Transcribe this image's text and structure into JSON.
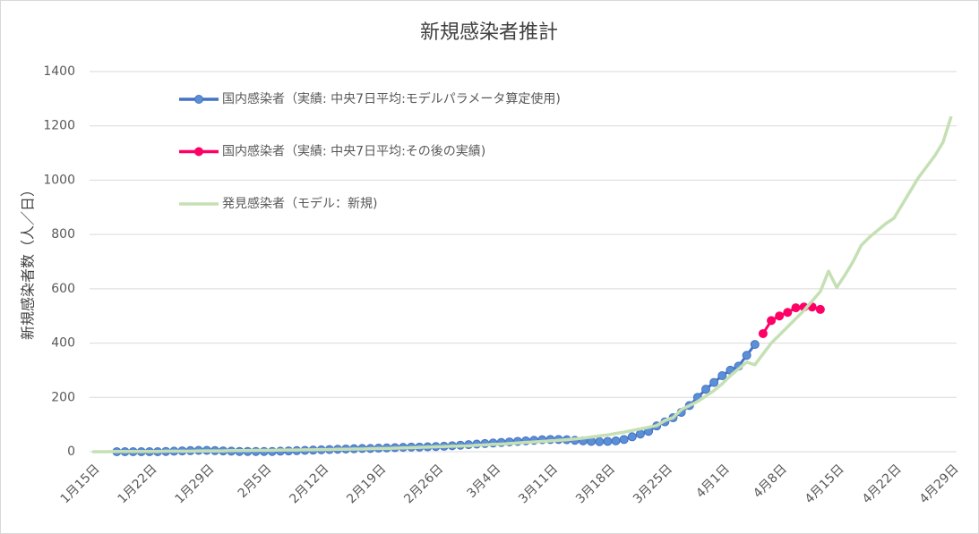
{
  "chart_data": {
    "type": "line",
    "title": "新規感染者推計",
    "y_label": "新規感染者数（人／日）",
    "categories": [
      "1月15日",
      null,
      null,
      null,
      null,
      null,
      null,
      "1月22日",
      null,
      null,
      null,
      null,
      null,
      null,
      "1月29日",
      null,
      null,
      null,
      null,
      null,
      null,
      "2月5日",
      null,
      null,
      null,
      null,
      null,
      null,
      "2月12日",
      null,
      null,
      null,
      null,
      null,
      null,
      "2月19日",
      null,
      null,
      null,
      null,
      null,
      null,
      "2月26日",
      null,
      null,
      null,
      null,
      null,
      null,
      "3月4日",
      null,
      null,
      null,
      null,
      null,
      null,
      "3月11日",
      null,
      null,
      null,
      null,
      null,
      null,
      "3月18日",
      null,
      null,
      null,
      null,
      null,
      null,
      "3月25日",
      null,
      null,
      null,
      null,
      null,
      null,
      "4月1日",
      null,
      null,
      null,
      null,
      null,
      null,
      "4月8日",
      null,
      null,
      null,
      null,
      null,
      null,
      "4月15日",
      null,
      null,
      null,
      null,
      null,
      null,
      "4月22日",
      null,
      null,
      null,
      null,
      null,
      null,
      "4月29日"
    ],
    "series": [
      {
        "name": "国内感染者（実績: 中央7日平均:モデルパラメータ算定使用)",
        "color": "#4472c4",
        "marker_color": "#5b8fd6",
        "markers": true,
        "values": [
          null,
          null,
          null,
          0,
          0,
          0,
          0,
          0,
          0,
          1,
          2,
          3,
          4,
          5,
          5,
          4,
          3,
          2,
          1,
          1,
          1,
          1,
          1,
          2,
          3,
          4,
          5,
          6,
          7,
          8,
          9,
          10,
          11,
          12,
          12,
          13,
          14,
          15,
          16,
          17,
          17,
          18,
          19,
          20,
          22,
          24,
          26,
          28,
          30,
          32,
          34,
          36,
          38,
          40,
          42,
          44,
          45,
          45,
          44,
          42,
          40,
          38,
          37,
          38,
          40,
          45,
          55,
          65,
          75,
          95,
          110,
          125,
          145,
          170,
          200,
          230,
          255,
          280,
          300,
          315,
          355,
          395,
          null,
          null,
          null,
          null,
          null,
          null,
          null,
          null,
          null,
          null,
          null,
          null,
          null,
          null,
          null,
          null,
          null,
          null,
          null,
          null,
          null,
          null,
          null,
          null
        ]
      },
      {
        "name": "国内感染者（実績: 中央7日平均:その後の実績)",
        "color": "#ff0066",
        "marker_color": "#ff0066",
        "markers": true,
        "values": [
          null,
          null,
          null,
          null,
          null,
          null,
          null,
          null,
          null,
          null,
          null,
          null,
          null,
          null,
          null,
          null,
          null,
          null,
          null,
          null,
          null,
          null,
          null,
          null,
          null,
          null,
          null,
          null,
          null,
          null,
          null,
          null,
          null,
          null,
          null,
          null,
          null,
          null,
          null,
          null,
          null,
          null,
          null,
          null,
          null,
          null,
          null,
          null,
          null,
          null,
          null,
          null,
          null,
          null,
          null,
          null,
          null,
          null,
          null,
          null,
          null,
          null,
          null,
          null,
          null,
          null,
          null,
          null,
          null,
          null,
          null,
          null,
          null,
          null,
          null,
          null,
          null,
          null,
          null,
          null,
          null,
          null,
          435,
          483,
          500,
          513,
          530,
          533,
          533,
          524,
          null,
          null,
          null,
          null,
          null,
          null,
          null,
          null,
          null,
          null,
          null,
          null,
          null,
          null,
          null,
          null
        ]
      },
      {
        "name": "発見感染者（モデル：新規)",
        "color": "#c5e0b4",
        "markers": false,
        "values": [
          0,
          0,
          0,
          1,
          1,
          1,
          1,
          1,
          1,
          2,
          2,
          2,
          2,
          3,
          3,
          3,
          3,
          4,
          4,
          4,
          5,
          5,
          5,
          6,
          6,
          6,
          7,
          7,
          8,
          8,
          9,
          9,
          10,
          10,
          11,
          12,
          12,
          13,
          14,
          15,
          16,
          17,
          18,
          19,
          20,
          21,
          22,
          24,
          25,
          27,
          28,
          30,
          32,
          34,
          36,
          38,
          40,
          42,
          44,
          47,
          50,
          54,
          58,
          62,
          67,
          72,
          78,
          84,
          90,
          96,
          115,
          125,
          155,
          170,
          185,
          205,
          225,
          250,
          280,
          305,
          330,
          320,
          360,
          400,
          430,
          460,
          490,
          520,
          555,
          590,
          665,
          605,
          650,
          700,
          760,
          790,
          815,
          840,
          860,
          910,
          960,
          1010,
          1050,
          1090,
          1140,
          1235
        ]
      }
    ],
    "ylim": [
      0,
      1400
    ],
    "yticks": [
      0,
      200,
      400,
      600,
      800,
      1000,
      1200,
      1400
    ],
    "grid": true,
    "legend": "top-left"
  }
}
